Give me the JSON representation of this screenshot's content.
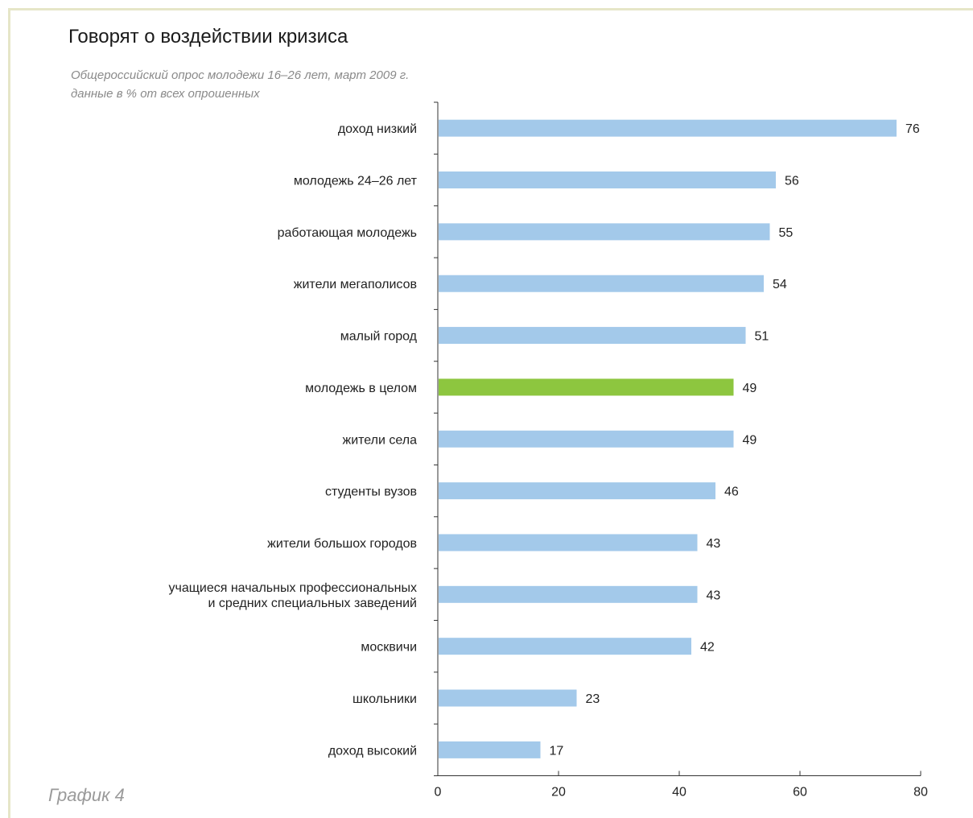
{
  "title": "Говорят о воздействии кризиса",
  "subtitle": "Общероссийский опрос молодежи 16–26 лет, март 2009 г.",
  "subtitle2": "данные в % от всех опрошенных",
  "caption": "График 4",
  "colors": {
    "bar": "#a3c9ea",
    "highlight": "#8dc63f",
    "axis": "#333333",
    "frame": "#e6e6c8"
  },
  "chart_data": {
    "type": "bar",
    "orientation": "horizontal",
    "categories": [
      [
        "доход низкий"
      ],
      [
        "молодежь 24–26 лет"
      ],
      [
        "работающая молодежь"
      ],
      [
        "жители мегаполисов"
      ],
      [
        "малый город"
      ],
      [
        "молодежь в целом"
      ],
      [
        "жители села"
      ],
      [
        "студенты вузов"
      ],
      [
        "жители большох городов"
      ],
      [
        "учащиеся начальных профессиональных",
        "и средних специальных заведений"
      ],
      [
        "москвичи"
      ],
      [
        "школьники"
      ],
      [
        "доход высокий"
      ]
    ],
    "values": [
      76,
      56,
      55,
      54,
      51,
      49,
      49,
      46,
      43,
      43,
      42,
      23,
      17
    ],
    "highlight_index": 5,
    "xlim": [
      0,
      80
    ],
    "xticks": [
      0,
      20,
      40,
      60,
      80
    ],
    "grid": false,
    "legend": "none"
  }
}
